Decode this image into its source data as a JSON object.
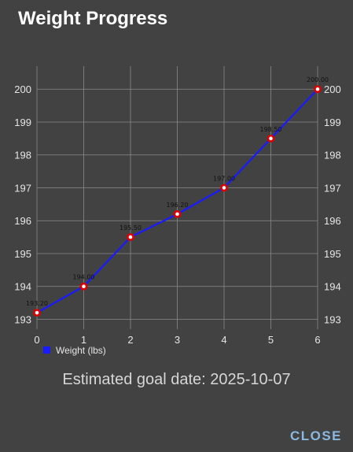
{
  "dialog": {
    "title": "Weight Progress",
    "goal_text": "Estimated goal date: 2025-10-07",
    "close_label": "CLOSE"
  },
  "colors": {
    "background": "#424242",
    "line": "#1a1aff",
    "point": "#e00000",
    "grid": "#8a8a8a",
    "accent": "#8ab8e0"
  },
  "chart_data": {
    "type": "line",
    "x": [
      0,
      1,
      2,
      3,
      4,
      5,
      6
    ],
    "series": [
      {
        "name": "Weight (lbs)",
        "values": [
          193.2,
          194.0,
          195.5,
          196.2,
          197.0,
          198.5,
          200.0
        ],
        "labels": [
          "193.20",
          "194.00",
          "195.50",
          "196.20",
          "197.00",
          "198.50",
          "200.00"
        ]
      }
    ],
    "xticks": [
      "0",
      "1",
      "2",
      "3",
      "4",
      "5",
      "6"
    ],
    "yticks": [
      "193",
      "194",
      "195",
      "196",
      "197",
      "198",
      "199",
      "200"
    ],
    "xlim": [
      0,
      6
    ],
    "ylim": [
      192.7,
      200.7
    ],
    "grid": true,
    "legend": "bottom-left",
    "title": "",
    "xlabel": "",
    "ylabel": ""
  }
}
